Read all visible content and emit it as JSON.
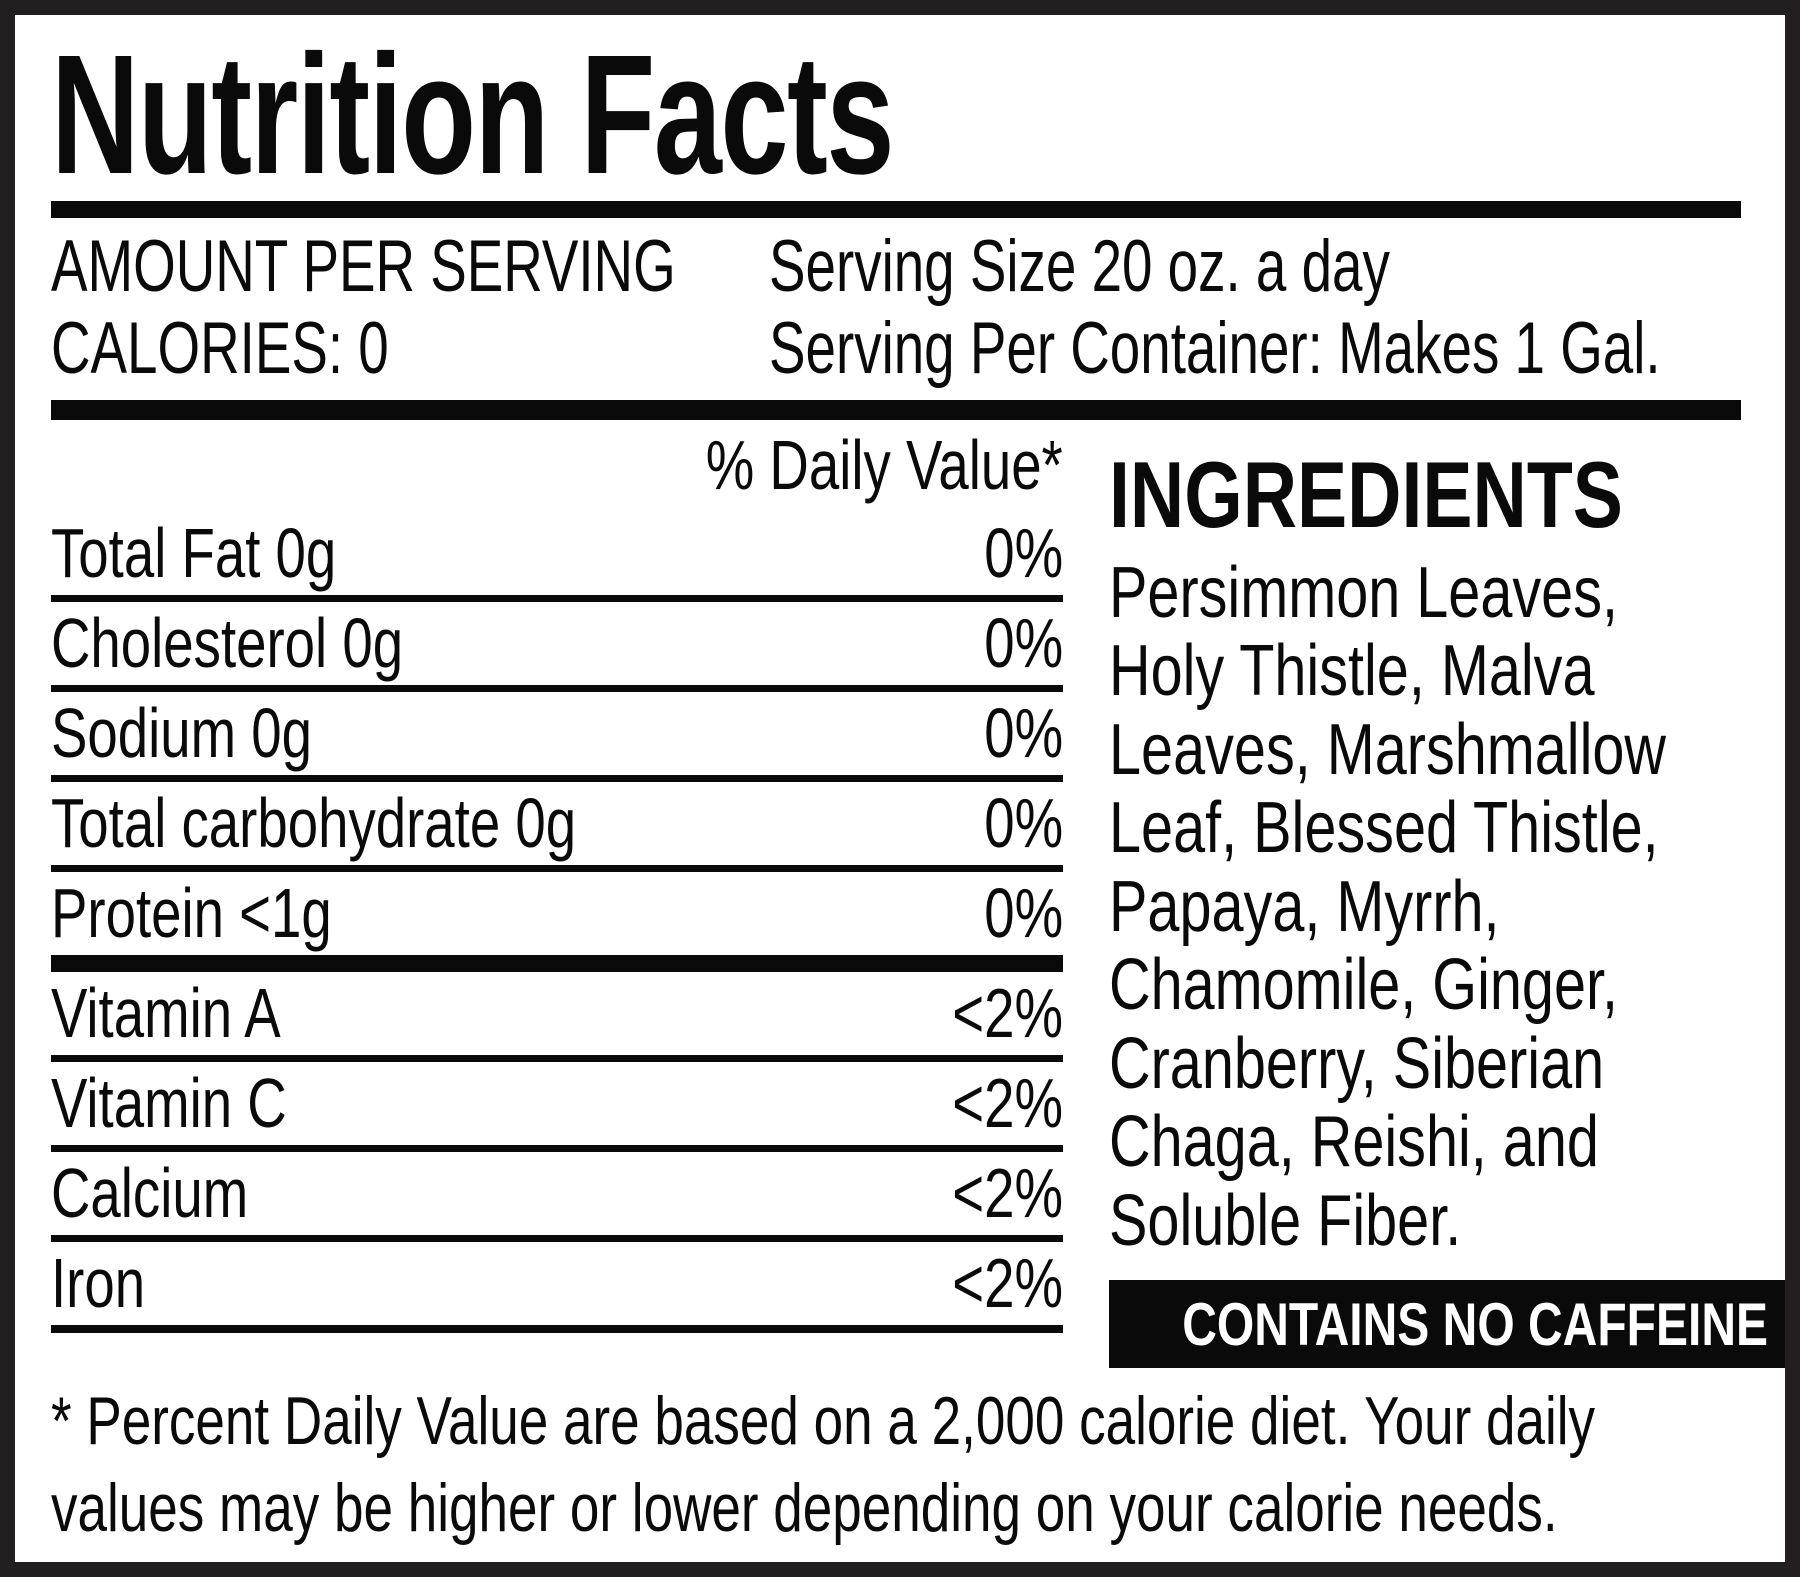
{
  "title": "Nutrition Facts",
  "serving": {
    "amount_label": "AMOUNT PER SERVING",
    "serving_size": "Serving Size 20 oz. a day",
    "calories_label": "CALORIES: 0",
    "servings_per_container": "Serving Per Container: Makes 1 Gal."
  },
  "daily_value_header": "% Daily Value*",
  "nutrients": [
    {
      "name": "Total Fat 0g",
      "value": "0%"
    },
    {
      "name": "Cholesterol 0g",
      "value": "0%"
    },
    {
      "name": "Sodium 0g",
      "value": "0%"
    },
    {
      "name": "Total carbohydrate 0g",
      "value": "0%"
    },
    {
      "name": "Protein <1g",
      "value": "0%"
    },
    {
      "name": "Vitamin A",
      "value": "<2%"
    },
    {
      "name": "Vitamin C",
      "value": "<2%"
    },
    {
      "name": "Calcium",
      "value": "<2%"
    },
    {
      "name": "Iron",
      "value": "<2%"
    }
  ],
  "ingredients": {
    "heading": "INGREDIENTS",
    "lines": [
      "Persimmon Leaves,",
      "Holy Thistle, Malva",
      "Leaves, Marshmallow",
      "Leaf, Blessed Thistle,",
      "Papaya, Myrrh,",
      "Chamomile, Ginger,",
      "Cranberry, Siberian",
      "Chaga, Reishi, and",
      "Soluble Fiber."
    ],
    "full_text": "Persimmon Leaves, Holy Thistle, Malva Leaves, Marshmallow Leaf, Blessed Thistle, Papaya, Myrrh, Chamomile, Ginger, Cranberry, Siberian Chaga, Reishi, and Soluble Fiber.",
    "no_caffeine": "CONTAINS NO CAFFEINE"
  },
  "footnote_lines": [
    "* Percent Daily Value are based on a 2,000 calorie diet. Your daily",
    "values may be higher or lower depending on your calorie needs."
  ],
  "colors": {
    "text": "#0a0a0a",
    "background": "#ffffff",
    "frame": "#231f20",
    "caffeine_bar_bg": "#0a0a0a",
    "caffeine_bar_text": "#ffffff"
  }
}
